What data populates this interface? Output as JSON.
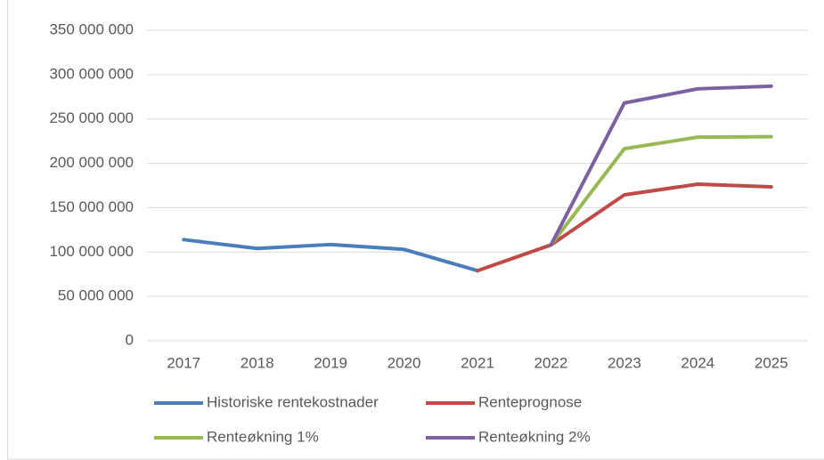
{
  "chart_data": {
    "type": "line",
    "categories": [
      "2017",
      "2018",
      "2019",
      "2020",
      "2021",
      "2022",
      "2023",
      "2024",
      "2025"
    ],
    "series": [
      {
        "name": "Historiske rentekostnader",
        "color": "#4a7ebb",
        "values": [
          114000000,
          104000000,
          108500000,
          103000000,
          79000000,
          null,
          null,
          null,
          null
        ]
      },
      {
        "name": "Renteprognose",
        "color": "#be4b48",
        "values": [
          null,
          null,
          null,
          null,
          79000000,
          108000000,
          164500000,
          176500000,
          173500000
        ]
      },
      {
        "name": "Renteøkning 1%",
        "color": "#98b954",
        "values": [
          null,
          null,
          null,
          null,
          null,
          108000000,
          216500000,
          229500000,
          230000000
        ]
      },
      {
        "name": "Renteøkning 2%",
        "color": "#7d60a0",
        "values": [
          null,
          null,
          null,
          null,
          null,
          108000000,
          268000000,
          284000000,
          287000000
        ]
      }
    ],
    "ylim": [
      0,
      350000000
    ],
    "yticks": [
      0,
      {
        "value": 50000000,
        "label": "50 000 000"
      },
      {
        "value": 100000000,
        "label": "100 000 000"
      },
      {
        "value": 150000000,
        "label": "150 000 000"
      },
      {
        "value": 200000000,
        "label": "200 000 000"
      },
      {
        "value": 250000000,
        "label": "250 000 000"
      },
      {
        "value": 300000000,
        "label": "300 000 000"
      },
      {
        "value": 350000000,
        "label": "350 000 000"
      }
    ],
    "grid": true,
    "legend": "bottom"
  }
}
